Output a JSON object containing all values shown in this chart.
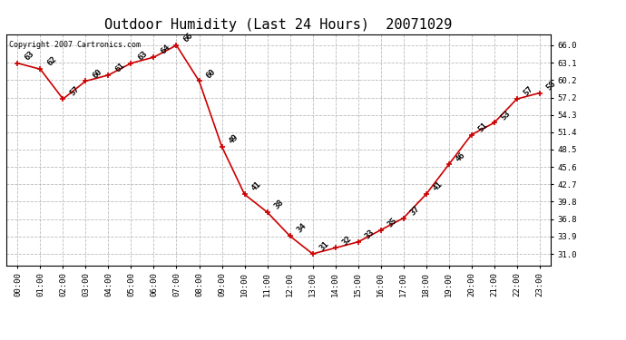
{
  "title": "Outdoor Humidity (Last 24 Hours)  20071029",
  "copyright": "Copyright 2007 Cartronics.com",
  "hours": [
    "00:00",
    "01:00",
    "02:00",
    "03:00",
    "04:00",
    "05:00",
    "06:00",
    "07:00",
    "08:00",
    "09:00",
    "10:00",
    "11:00",
    "12:00",
    "13:00",
    "14:00",
    "15:00",
    "16:00",
    "17:00",
    "18:00",
    "19:00",
    "20:00",
    "21:00",
    "22:00",
    "23:00"
  ],
  "values": [
    63,
    62,
    57,
    60,
    61,
    63,
    64,
    66,
    60,
    49,
    41,
    38,
    34,
    31,
    32,
    33,
    35,
    37,
    41,
    46,
    51,
    53,
    57,
    58
  ],
  "line_color": "#cc0000",
  "marker_color": "#cc0000",
  "bg_color": "#ffffff",
  "grid_color": "#bbbbbb",
  "ylim_min": 29.1,
  "ylim_max": 67.9,
  "yticks": [
    31.0,
    33.9,
    36.8,
    39.8,
    42.7,
    45.6,
    48.5,
    51.4,
    54.3,
    57.2,
    60.2,
    63.1,
    66.0
  ],
  "title_fontsize": 11,
  "label_fontsize": 6.5,
  "tick_fontsize": 6.5,
  "copyright_fontsize": 6
}
